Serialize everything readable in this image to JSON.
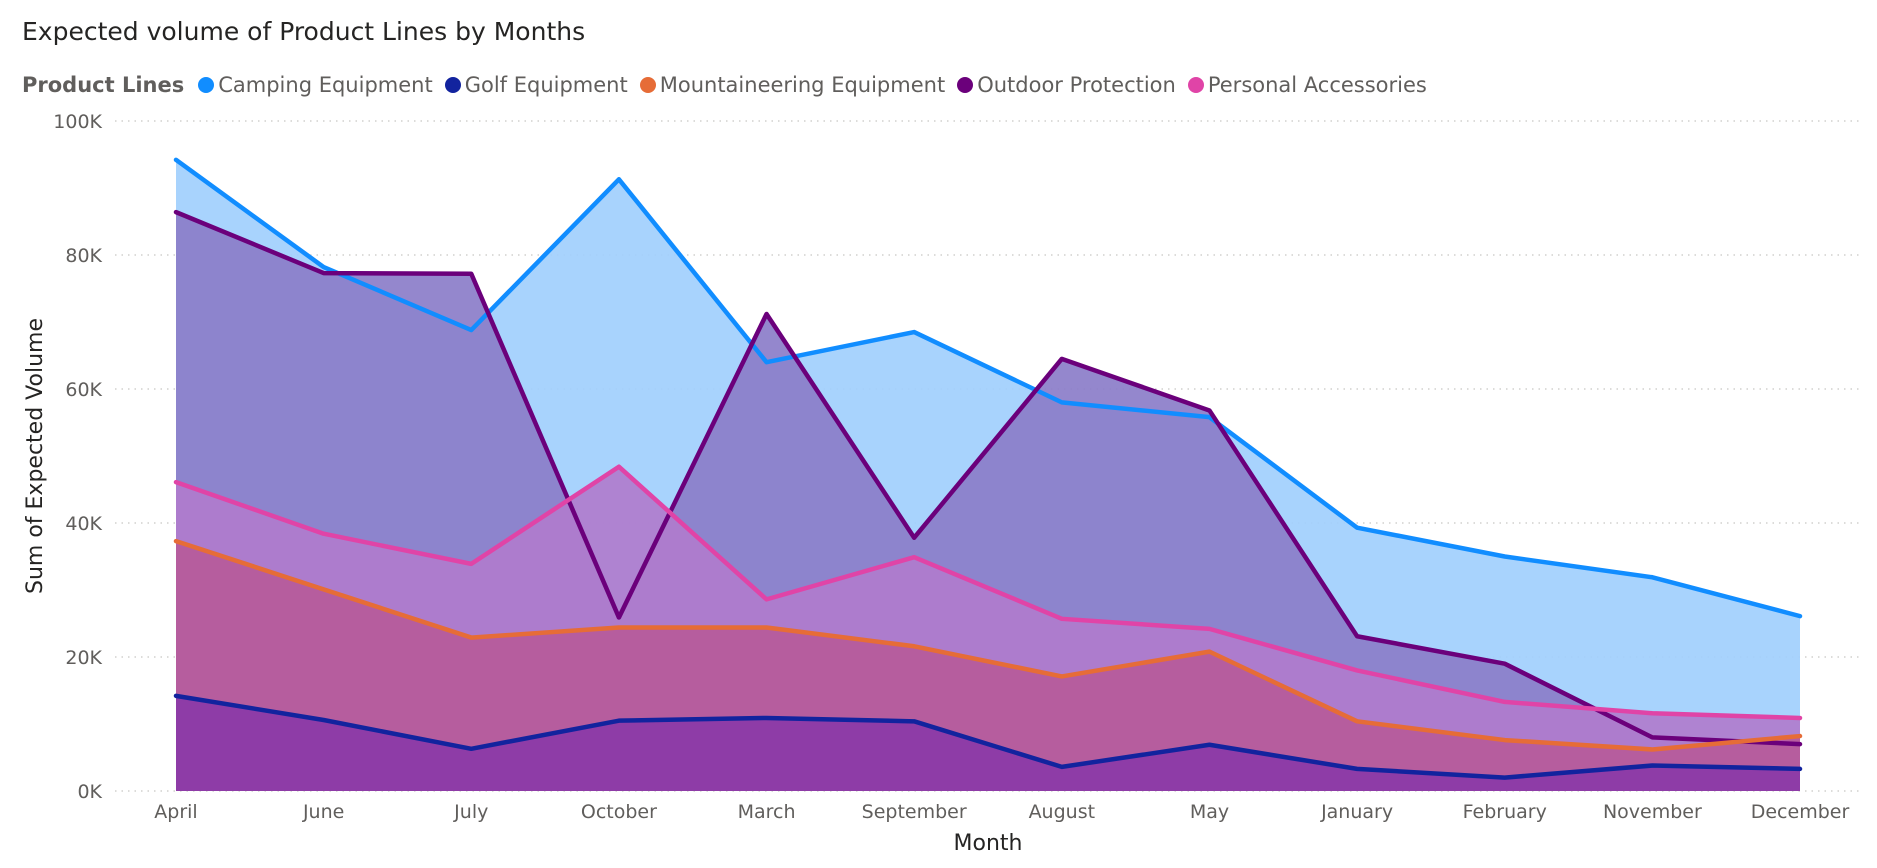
{
  "title": "Expected volume of Product Lines by Months",
  "legend": {
    "title": "Product Lines",
    "position": "top-left"
  },
  "chart_data": {
    "type": "area",
    "title": "Expected volume of Product Lines by Months",
    "xlabel": "Month",
    "ylabel": "Sum of Expected Volume",
    "ylim": [
      0,
      100000
    ],
    "y_ticks": [
      "0K",
      "20K",
      "40K",
      "60K",
      "80K",
      "100K"
    ],
    "grid": true,
    "categories": [
      "April",
      "June",
      "July",
      "October",
      "March",
      "September",
      "August",
      "May",
      "January",
      "February",
      "November",
      "December"
    ],
    "series": [
      {
        "name": "Camping Equipment",
        "color": "#118DFF",
        "fill": "#a1cffd",
        "values": [
          94200,
          78200,
          68800,
          91300,
          64000,
          68500,
          58000,
          55800,
          39300,
          35000,
          31900,
          26100
        ]
      },
      {
        "name": "Golf Equipment",
        "color": "#12239E",
        "fill": "#8b3aa8",
        "values": [
          14200,
          10600,
          6300,
          10500,
          10900,
          10400,
          3600,
          6900,
          3300,
          2000,
          3800,
          3300
        ]
      },
      {
        "name": "Mountaineering Equipment",
        "color": "#E66C37",
        "fill": "#b65a9a",
        "values": [
          37300,
          30100,
          22900,
          24400,
          24400,
          21600,
          17100,
          20800,
          10400,
          7600,
          6200,
          8200
        ]
      },
      {
        "name": "Outdoor Protection",
        "color": "#6B007B",
        "fill": "#8b7dc9",
        "values": [
          86400,
          77300,
          77200,
          25900,
          71200,
          37800,
          64500,
          56800,
          23100,
          19000,
          8000,
          7000
        ]
      },
      {
        "name": "Personal Accessories",
        "color": "#E044A7",
        "fill": "#b07ccd",
        "values": [
          46100,
          38400,
          33900,
          48400,
          28600,
          34900,
          25700,
          24200,
          18000,
          13300,
          11600,
          10900
        ]
      }
    ]
  }
}
